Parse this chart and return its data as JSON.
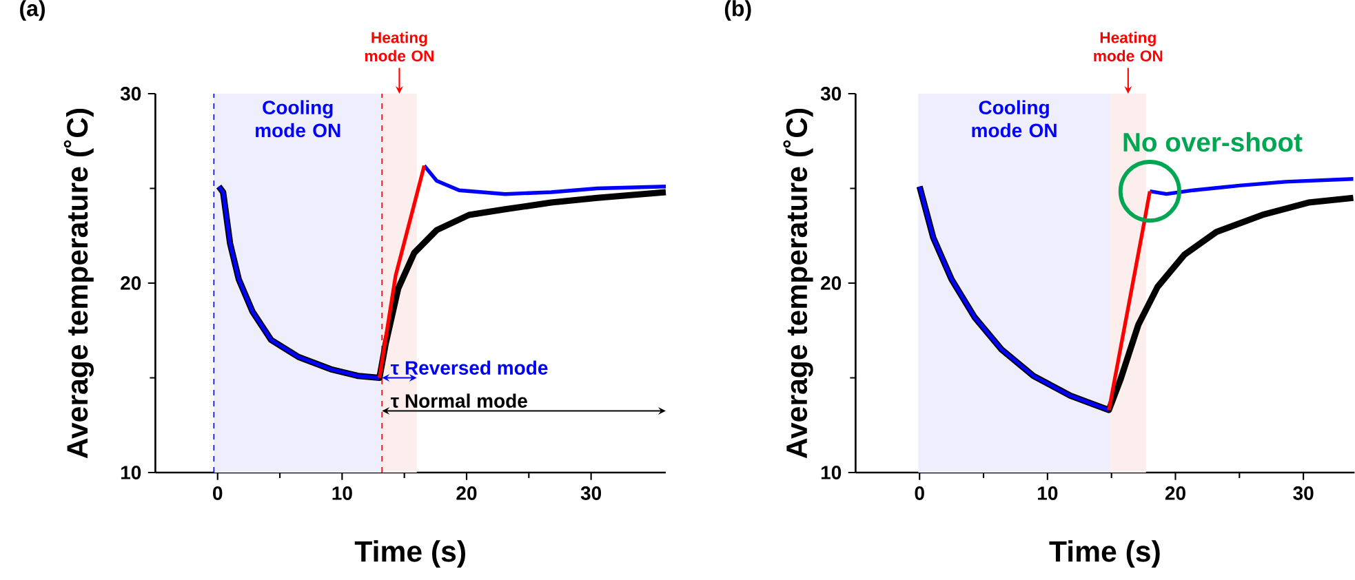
{
  "chart_data": [
    {
      "type": "line",
      "title": "(a)",
      "xlabel": "Time (s)",
      "ylabel": "Average temperature (˚C)",
      "xlim": [
        -5,
        36
      ],
      "ylim": [
        10,
        30
      ],
      "xticks": [
        0,
        10,
        20,
        30
      ],
      "yticks": [
        10,
        20,
        30
      ],
      "series": [
        {
          "color": "#000000",
          "x": [
            0.1,
            0.44,
            1.0,
            1.7,
            2.8,
            4.3,
            6.5,
            9.1,
            11.3,
            13.0,
            13.5,
            14.5,
            15.8,
            17.6,
            20.2,
            23.1,
            26.8,
            30.5,
            36
          ],
          "values": [
            25.1,
            24.8,
            22.1,
            20.2,
            18.5,
            17.0,
            16.1,
            15.45,
            15.1,
            15.0,
            16.8,
            19.7,
            21.6,
            22.8,
            23.6,
            23.9,
            24.25,
            24.5,
            24.8
          ]
        },
        {
          "color": "#0000ff",
          "x": [
            0.1,
            0.44,
            1.0,
            1.7,
            2.8,
            4.3,
            6.5,
            9.1,
            11.3,
            13.0,
            14.8,
            16.6,
            17.6,
            19.4,
            23.1,
            26.8,
            30.5,
            36
          ],
          "values": [
            25.1,
            24.8,
            22.1,
            20.2,
            18.5,
            17.0,
            16.1,
            15.45,
            15.1,
            15.0,
            null,
            26.2,
            25.4,
            24.9,
            24.7,
            24.8,
            25.0,
            25.1
          ]
        },
        {
          "color": "#ff0000",
          "x": [
            13.0,
            14.3,
            16.6
          ],
          "values": [
            15.0,
            20.4,
            26.2
          ]
        }
      ],
      "bands": [
        {
          "axis": "x",
          "from": -0.3,
          "to": 13.2,
          "label": "Cooling mode ON",
          "color": "#eeeefc"
        },
        {
          "axis": "x",
          "from": 13.2,
          "to": 16.0,
          "label": "Heating mode ON",
          "color": "#fdeeee"
        }
      ],
      "ref_lines": [
        {
          "axis": "x",
          "value": -0.3,
          "color": "#0000ff",
          "line_style": "dashed"
        },
        {
          "axis": "x",
          "value": 13.2,
          "color": "#ff0000",
          "line_style": "dashed"
        }
      ],
      "annotations": [
        "τ Reversed mode",
        "τ Normal mode"
      ]
    },
    {
      "type": "line",
      "title": "(b)",
      "xlabel": "Time (s)",
      "ylabel": "Average temperature (˚C)",
      "xlim": [
        -5,
        34
      ],
      "ylim": [
        10,
        30
      ],
      "xticks": [
        0,
        10,
        20,
        30
      ],
      "yticks": [
        10,
        20,
        30
      ],
      "series": [
        {
          "color": "#000000",
          "x": [
            0,
            1.07,
            2.5,
            4.3,
            6.4,
            8.9,
            11.8,
            13.6,
            14.8,
            15.7,
            17.1,
            18.6,
            20.7,
            23.2,
            26.8,
            30.4,
            33.9
          ],
          "values": [
            25.1,
            22.4,
            20.2,
            18.2,
            16.5,
            15.1,
            14.05,
            13.6,
            13.3,
            14.9,
            17.8,
            19.8,
            21.5,
            22.7,
            23.6,
            24.25,
            24.5
          ]
        },
        {
          "color": "#0000ff",
          "x": [
            0,
            1.07,
            2.5,
            4.3,
            6.4,
            8.9,
            11.8,
            13.6,
            14.8,
            16.4,
            18.0,
            19.3,
            21.4,
            25.0,
            28.6,
            33.9
          ],
          "values": [
            25.1,
            22.4,
            20.2,
            18.2,
            16.5,
            15.1,
            14.05,
            13.6,
            13.3,
            null,
            24.85,
            24.7,
            24.9,
            25.15,
            25.35,
            25.5
          ]
        },
        {
          "color": "#ff0000",
          "x": [
            14.8,
            17.5,
            18.0
          ],
          "values": [
            13.3,
            23.0,
            24.85
          ]
        }
      ],
      "bands": [
        {
          "axis": "x",
          "from": -0.1,
          "to": 14.9,
          "label": "Cooling mode ON",
          "color": "#eeeefc"
        },
        {
          "axis": "x",
          "from": 14.9,
          "to": 17.7,
          "label": "Heating mode ON",
          "color": "#fdeeee"
        }
      ],
      "annotations": [
        "No over-shoot"
      ]
    }
  ]
}
